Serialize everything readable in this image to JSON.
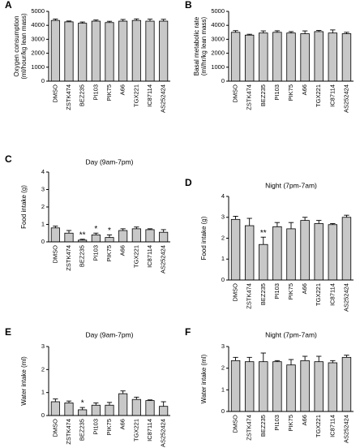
{
  "chart_data": [
    {
      "type": "bar",
      "panel": "A",
      "ylabel": [
        "Oxygen consumption",
        "(ml/hour/kg lean mass)"
      ],
      "categories": [
        "DMSO",
        "ZSTK474",
        "BEZ235",
        "PI103",
        "PIK75",
        "A66",
        "TGX221",
        "IC87114",
        "AS252424"
      ],
      "values": [
        4350,
        4250,
        4150,
        4300,
        4200,
        4300,
        4350,
        4300,
        4300
      ],
      "errors": [
        100,
        60,
        90,
        80,
        90,
        120,
        110,
        140,
        130
      ],
      "ylim": [
        0,
        5000
      ],
      "yticks": [
        0,
        1000,
        2000,
        3000,
        4000,
        5000
      ],
      "color": "#c8c8c8"
    },
    {
      "type": "bar",
      "panel": "B",
      "ylabel": [
        "Basal metabolic rate",
        "(ml/hr/kg lean mass)"
      ],
      "categories": [
        "DMSO",
        "ZSTK474",
        "BEZ235",
        "PI103",
        "PIK75",
        "A66",
        "TGX221",
        "IC87114",
        "AS252424"
      ],
      "values": [
        3500,
        3300,
        3450,
        3500,
        3450,
        3400,
        3550,
        3450,
        3400
      ],
      "errors": [
        120,
        60,
        150,
        110,
        100,
        200,
        80,
        220,
        100
      ],
      "ylim": [
        0,
        5000
      ],
      "yticks": [
        0,
        1000,
        2000,
        3000,
        4000,
        5000
      ],
      "color": "#c8c8c8"
    },
    {
      "type": "bar",
      "panel": "C",
      "title": "Day (9am-7pm)",
      "ylabel": [
        "Food intake (g)"
      ],
      "categories": [
        "DMSO",
        "ZSTK474",
        "BEZ235",
        "PI103",
        "PIK75",
        "A66",
        "TGX221",
        "IC87114",
        "AS252424"
      ],
      "values": [
        0.8,
        0.5,
        0.1,
        0.4,
        0.25,
        0.65,
        0.75,
        0.7,
        0.55
      ],
      "errors": [
        0.1,
        0.15,
        0.05,
        0.1,
        0.15,
        0.1,
        0.1,
        0.05,
        0.15
      ],
      "significance": [
        null,
        null,
        "**",
        "*",
        "*",
        null,
        null,
        null,
        null
      ],
      "ylim": [
        0,
        4
      ],
      "yticks": [
        0,
        1,
        2,
        3,
        4
      ],
      "color": "#c8c8c8"
    },
    {
      "type": "bar",
      "panel": "D",
      "title": "Night (7pm-7am)",
      "ylabel": [
        "Food intake (g)"
      ],
      "categories": [
        "DMSO",
        "ZSTK474",
        "BEZ235",
        "PI103",
        "PIK75",
        "A66",
        "TGX221",
        "IC87114",
        "AS252424"
      ],
      "values": [
        2.9,
        2.6,
        1.7,
        2.55,
        2.45,
        2.85,
        2.7,
        2.65,
        3.0
      ],
      "errors": [
        0.15,
        0.35,
        0.35,
        0.2,
        0.3,
        0.15,
        0.15,
        0.05,
        0.1
      ],
      "significance": [
        null,
        null,
        "**",
        null,
        null,
        null,
        null,
        null,
        null
      ],
      "ylim": [
        0,
        4
      ],
      "yticks": [
        0,
        1,
        2,
        3,
        4
      ],
      "color": "#c8c8c8"
    },
    {
      "type": "bar",
      "panel": "E",
      "title": "Day (9am-7pm)",
      "ylabel": [
        "Water intake (ml)"
      ],
      "categories": [
        "DMSO",
        "ZSTK474",
        "BEZ235",
        "PI103",
        "PIK75",
        "A66",
        "TGX221",
        "IC87114",
        "AS252424"
      ],
      "values": [
        0.6,
        0.55,
        0.25,
        0.45,
        0.45,
        0.95,
        0.7,
        0.65,
        0.4
      ],
      "errors": [
        0.12,
        0.08,
        0.1,
        0.1,
        0.12,
        0.12,
        0.1,
        0.03,
        0.2
      ],
      "significance": [
        null,
        null,
        "*",
        null,
        null,
        null,
        null,
        null,
        null
      ],
      "ylim": [
        0,
        3
      ],
      "yticks": [
        0,
        1,
        2,
        3
      ],
      "color": "#c8c8c8"
    },
    {
      "type": "bar",
      "panel": "F",
      "title": "Night (7pm-7am)",
      "ylabel": [
        "Water intake (ml)"
      ],
      "categories": [
        "DMSO",
        "ZSTK474",
        "BEZ235",
        "PI103",
        "PIK75",
        "A66",
        "TGX221",
        "IC87114",
        "AS252424"
      ],
      "values": [
        2.35,
        2.3,
        2.3,
        2.3,
        2.15,
        2.35,
        2.3,
        2.25,
        2.5
      ],
      "errors": [
        0.15,
        0.2,
        0.4,
        0.05,
        0.25,
        0.2,
        0.25,
        0.1,
        0.1
      ],
      "ylim": [
        0,
        3
      ],
      "yticks": [
        0,
        1,
        2,
        3
      ],
      "color": "#c8c8c8"
    }
  ]
}
